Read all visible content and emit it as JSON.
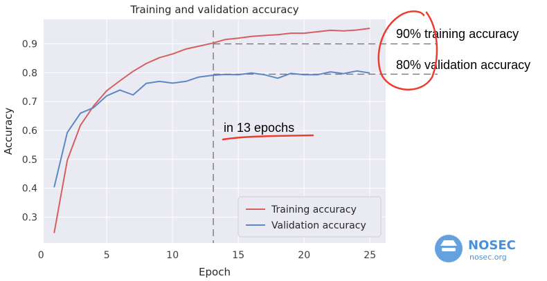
{
  "chart_data": {
    "type": "line",
    "title": "Training and validation accuracy",
    "xlabel": "Epoch",
    "ylabel": "Accuracy",
    "xlim": [
      0.2,
      26.2
    ],
    "ylim": [
      0.21,
      0.985
    ],
    "xticks": [
      0,
      5,
      10,
      15,
      20,
      25
    ],
    "yticks": [
      0.3,
      0.4,
      0.5,
      0.6,
      0.7,
      0.8,
      0.9
    ],
    "grid": true,
    "legend_position": "bottom-right",
    "x": [
      1,
      2,
      3,
      4,
      5,
      6,
      7,
      8,
      9,
      10,
      11,
      12,
      13,
      14,
      15,
      16,
      17,
      18,
      19,
      20,
      21,
      22,
      23,
      24,
      25
    ],
    "series": [
      {
        "name": "Training accuracy",
        "color": "#d2605f",
        "values": [
          0.245,
          0.497,
          0.618,
          0.685,
          0.738,
          0.772,
          0.805,
          0.832,
          0.852,
          0.865,
          0.882,
          0.892,
          0.902,
          0.915,
          0.92,
          0.926,
          0.929,
          0.932,
          0.937,
          0.937,
          0.942,
          0.947,
          0.945,
          0.948,
          0.954
        ]
      },
      {
        "name": "Validation accuracy",
        "color": "#5b88c4",
        "values": [
          0.403,
          0.593,
          0.66,
          0.679,
          0.72,
          0.74,
          0.723,
          0.763,
          0.77,
          0.764,
          0.77,
          0.785,
          0.791,
          0.794,
          0.793,
          0.799,
          0.793,
          0.781,
          0.798,
          0.793,
          0.793,
          0.803,
          0.797,
          0.806,
          0.799
        ]
      }
    ],
    "annotations": {
      "vline_x": 13.1,
      "hline_values": [
        0.9,
        0.795
      ],
      "notes": [
        "90% training accuracy",
        "80% validation accuracy",
        "in 13 epochs"
      ]
    }
  },
  "watermark": {
    "name": "NOSEC",
    "url": "nosec.org",
    "color": "#4a90d9"
  },
  "colors": {
    "plot_bg": "#eaeaf2",
    "grid": "#ffffff",
    "annotation_ink": "#ee3b2f"
  }
}
